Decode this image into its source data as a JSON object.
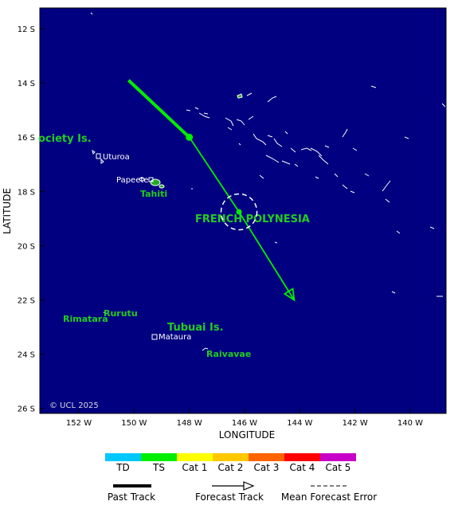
{
  "map": {
    "lat_ticks": [
      "12 S",
      "14 S",
      "16 S",
      "18 S",
      "20 S",
      "22 S",
      "24 S",
      "26 S"
    ],
    "lon_ticks": [
      "152 W",
      "150 W",
      "148 W",
      "146 W",
      "144 W",
      "142 W",
      "140 W"
    ],
    "x_label": "LONGITUDE",
    "y_label": "LATITUDE",
    "ocean_color": "#000080",
    "land_outline_color": "#ffffff",
    "copyright": "© UCL 2025"
  },
  "places": {
    "region": "FRENCH POLYNESIA",
    "society": "ociety Is.",
    "tubuai": "Tubuai Is.",
    "tahiti": "Tahiti",
    "rurutu": "Rurutu",
    "rimatara": "Rimatara",
    "raivavae": "Raivavae",
    "uturoa": "Uturoa",
    "papeete": "Papeete",
    "mataura": "Mataura"
  },
  "track": {
    "category_color": "#00ee00",
    "past": [
      {
        "lon": -150.2,
        "lat": -13.9
      },
      {
        "lon": -148.0,
        "lat": -16.0
      }
    ],
    "forecast": [
      {
        "lon": -148.0,
        "lat": -16.0
      },
      {
        "lon": -146.2,
        "lat": -18.75
      },
      {
        "lon": -144.2,
        "lat": -22.0
      }
    ],
    "error_circle": {
      "lon": -146.2,
      "lat": -18.75,
      "radius_deg": 0.65
    }
  },
  "legend": {
    "scale": [
      {
        "label": "TD",
        "color": "#00c8ff"
      },
      {
        "label": "TS",
        "color": "#00ee00"
      },
      {
        "label": "Cat 1",
        "color": "#ffff00"
      },
      {
        "label": "Cat 2",
        "color": "#ffc800"
      },
      {
        "label": "Cat 3",
        "color": "#ff6400"
      },
      {
        "label": "Cat 4",
        "color": "#ff0000"
      },
      {
        "label": "Cat 5",
        "color": "#c800c8"
      }
    ],
    "past_track": "Past Track",
    "forecast_track": "Forecast Track",
    "mean_error": "Mean Forecast Error"
  }
}
